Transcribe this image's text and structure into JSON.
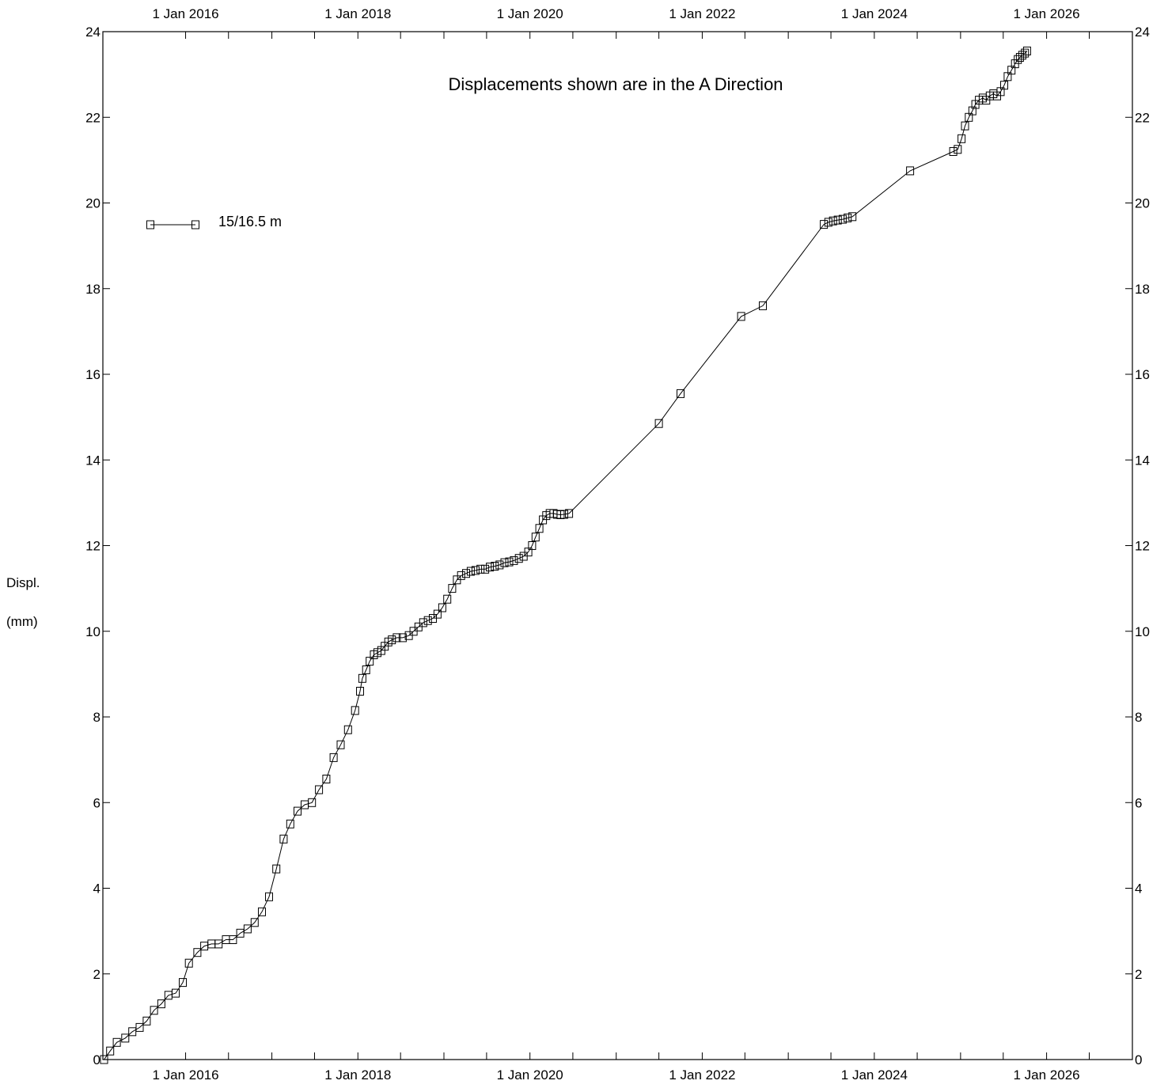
{
  "chart_data": {
    "type": "line",
    "title": "Displacements shown are in the  A Direction",
    "ylabel_line1": "Displ.",
    "ylabel_line2": "(mm)",
    "ylim": [
      0,
      24
    ],
    "yticks": [
      0,
      2,
      4,
      6,
      8,
      10,
      12,
      14,
      16,
      18,
      20,
      22,
      24
    ],
    "xlim": [
      "2015-01-15",
      "2026-12-31"
    ],
    "xticks": [
      {
        "date": "2016-01-01",
        "label": "1 Jan 2016"
      },
      {
        "date": "2018-01-01",
        "label": "1 Jan 2018"
      },
      {
        "date": "2020-01-01",
        "label": "1 Jan 2020"
      },
      {
        "date": "2022-01-01",
        "label": "1 Jan 2022"
      },
      {
        "date": "2024-01-01",
        "label": "1 Jan 2024"
      },
      {
        "date": "2026-01-01",
        "label": "1 Jan 2026"
      }
    ],
    "minor_xticks": [
      "2015-01-01",
      "2016-07-01",
      "2017-01-01",
      "2017-07-01",
      "2018-07-01",
      "2019-01-01",
      "2019-07-01",
      "2020-07-01",
      "2021-01-01",
      "2021-07-01",
      "2022-07-01",
      "2023-01-01",
      "2023-07-01",
      "2024-07-01",
      "2025-01-01",
      "2025-07-01",
      "2026-07-01"
    ],
    "legend_position": "top-left",
    "series": [
      {
        "name": "15/16.5 m",
        "marker": "square",
        "x": [
          "2015-01-20",
          "2015-02-15",
          "2015-03-15",
          "2015-04-20",
          "2015-05-20",
          "2015-06-20",
          "2015-07-20",
          "2015-08-20",
          "2015-09-20",
          "2015-10-20",
          "2015-11-20",
          "2015-12-20",
          "2016-01-15",
          "2016-02-20",
          "2016-03-20",
          "2016-04-20",
          "2016-05-20",
          "2016-06-20",
          "2016-07-20",
          "2016-08-20",
          "2016-09-20",
          "2016-10-20",
          "2016-11-20",
          "2016-12-20",
          "2017-01-20",
          "2017-02-20",
          "2017-03-20",
          "2017-04-20",
          "2017-05-20",
          "2017-06-20",
          "2017-07-20",
          "2017-08-20",
          "2017-09-20",
          "2017-10-20",
          "2017-11-20",
          "2017-12-20",
          "2018-01-10",
          "2018-01-20",
          "2018-02-05",
          "2018-02-20",
          "2018-03-10",
          "2018-03-25",
          "2018-04-10",
          "2018-04-25",
          "2018-05-10",
          "2018-05-25",
          "2018-06-15",
          "2018-07-10",
          "2018-08-05",
          "2018-08-25",
          "2018-09-15",
          "2018-10-05",
          "2018-10-25",
          "2018-11-15",
          "2018-12-05",
          "2018-12-25",
          "2019-01-15",
          "2019-02-05",
          "2019-02-25",
          "2019-03-15",
          "2019-04-05",
          "2019-04-25",
          "2019-05-15",
          "2019-06-05",
          "2019-06-25",
          "2019-07-15",
          "2019-08-05",
          "2019-08-25",
          "2019-09-15",
          "2019-10-05",
          "2019-10-25",
          "2019-11-15",
          "2019-12-05",
          "2019-12-25",
          "2020-01-10",
          "2020-01-25",
          "2020-02-10",
          "2020-02-25",
          "2020-03-10",
          "2020-03-25",
          "2020-04-10",
          "2020-04-25",
          "2020-05-10",
          "2020-05-25",
          "2020-06-15",
          "2021-07-01",
          "2021-10-01",
          "2022-06-15",
          "2022-09-15",
          "2023-06-01",
          "2023-06-20",
          "2023-07-10",
          "2023-07-30",
          "2023-08-20",
          "2023-09-10",
          "2023-09-30",
          "2024-06-01",
          "2024-12-01",
          "2024-12-20",
          "2025-01-05",
          "2025-01-20",
          "2025-02-05",
          "2025-02-20",
          "2025-03-05",
          "2025-03-20",
          "2025-04-05",
          "2025-04-20",
          "2025-05-05",
          "2025-05-20",
          "2025-06-05",
          "2025-06-20",
          "2025-07-05",
          "2025-07-20",
          "2025-08-05",
          "2025-08-20",
          "2025-09-01",
          "2025-09-10",
          "2025-09-20",
          "2025-10-01",
          "2025-10-10"
        ],
        "y": [
          0.0,
          0.2,
          0.4,
          0.5,
          0.65,
          0.75,
          0.9,
          1.15,
          1.3,
          1.5,
          1.55,
          1.8,
          2.25,
          2.5,
          2.65,
          2.7,
          2.7,
          2.8,
          2.8,
          2.95,
          3.05,
          3.2,
          3.45,
          3.8,
          4.45,
          5.15,
          5.5,
          5.8,
          5.95,
          6.0,
          6.3,
          6.55,
          7.05,
          7.35,
          7.7,
          8.15,
          8.6,
          8.9,
          9.1,
          9.3,
          9.45,
          9.5,
          9.55,
          9.65,
          9.75,
          9.8,
          9.85,
          9.85,
          9.9,
          10.0,
          10.1,
          10.2,
          10.25,
          10.3,
          10.4,
          10.55,
          10.75,
          11.0,
          11.2,
          11.3,
          11.35,
          11.4,
          11.42,
          11.45,
          11.45,
          11.5,
          11.52,
          11.55,
          11.6,
          11.62,
          11.65,
          11.7,
          11.75,
          11.85,
          12.0,
          12.2,
          12.4,
          12.6,
          12.7,
          12.75,
          12.75,
          12.73,
          12.72,
          12.73,
          12.75,
          14.85,
          15.55,
          17.35,
          17.6,
          19.5,
          19.55,
          19.58,
          19.6,
          19.62,
          19.65,
          19.68,
          20.75,
          21.2,
          21.25,
          21.5,
          21.8,
          22.0,
          22.15,
          22.3,
          22.4,
          22.45,
          22.4,
          22.5,
          22.55,
          22.5,
          22.6,
          22.75,
          22.95,
          23.1,
          23.25,
          23.35,
          23.4,
          23.45,
          23.5,
          23.55
        ],
        "color": "#000000"
      }
    ]
  }
}
